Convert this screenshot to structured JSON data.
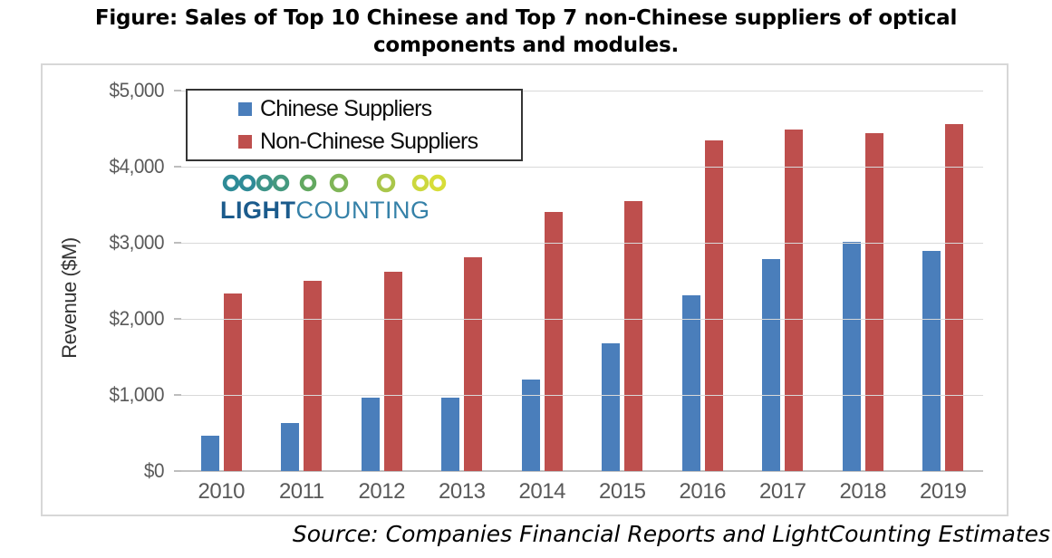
{
  "figure": {
    "title_line1": "Figure: Sales of Top 10 Chinese and Top 7 non-Chinese suppliers of optical",
    "title_line2": "components and modules.",
    "source": "Source: Companies Financial Reports and LightCounting Estimates"
  },
  "logo": {
    "text_bold": "LIGHT",
    "text_regular": "COUNTING",
    "text_bold_color": "#1b5b8c",
    "text_regular_color": "#3581a8",
    "circle_colors": [
      "#2e8b97",
      "#2e8b97",
      "#3d9488",
      "#45997f",
      "#62a860",
      "#7fb557",
      "#a9c64a",
      "#ccd83e",
      "#d7dd38"
    ],
    "line_color_start": "#2e8b97",
    "line_color_end": "#d7dd38"
  },
  "chart_data": {
    "type": "bar",
    "title": "",
    "xlabel": "",
    "ylabel": "Revenue ($M)",
    "ylim": [
      0,
      5000
    ],
    "grid": true,
    "legend_position": "top-left",
    "y_ticks": [
      0,
      1000,
      2000,
      3000,
      4000,
      5000
    ],
    "y_tick_labels": [
      "$0",
      "$1,000",
      "$2,000",
      "$3,000",
      "$4,000",
      "$5,000"
    ],
    "categories": [
      "2010",
      "2011",
      "2012",
      "2013",
      "2014",
      "2015",
      "2016",
      "2017",
      "2018",
      "2019"
    ],
    "series": [
      {
        "name": "Chinese Suppliers",
        "color": "#4a7ebb",
        "values": [
          465,
          630,
          965,
          965,
          1200,
          1680,
          2310,
          2780,
          3010,
          2890
        ]
      },
      {
        "name": "Non-Chinese Suppliers",
        "color": "#be4f4d",
        "values": [
          2330,
          2500,
          2620,
          2810,
          3400,
          3550,
          4350,
          4490,
          4440,
          4560
        ]
      }
    ]
  }
}
